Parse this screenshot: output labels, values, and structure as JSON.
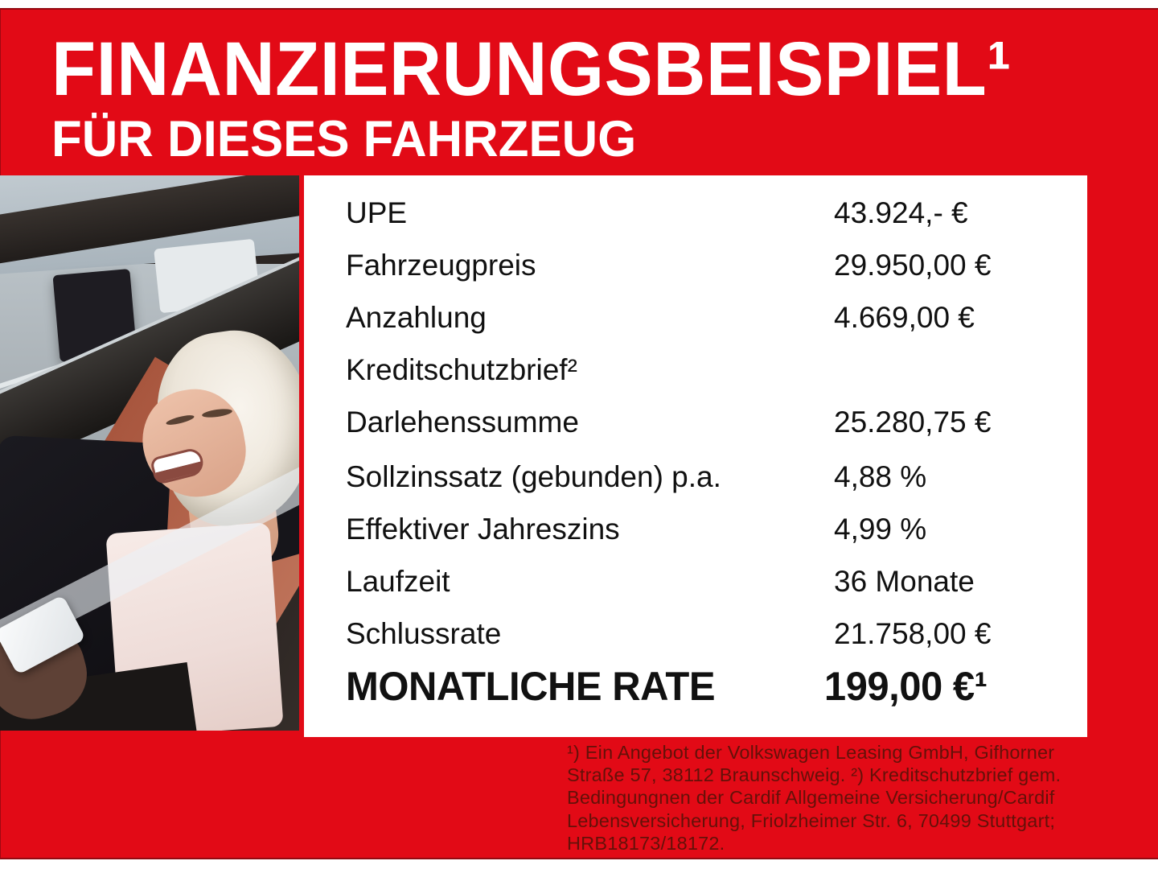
{
  "header": {
    "title": "FINANZIERUNGSBEISPIEL¹",
    "subtitle": "FÜR DIESES FAHRZEUG"
  },
  "table": {
    "rows": [
      {
        "label": "UPE",
        "value": "43.924,- €"
      },
      {
        "label": "Fahrzeugpreis",
        "value": "29.950,00 €"
      },
      {
        "label": "Anzahlung",
        "value": "4.669,00 €"
      },
      {
        "label": "Kreditschutzbrief²",
        "value": ""
      },
      {
        "label": "Darlehenssumme",
        "value": "25.280,75 €"
      },
      {
        "label": "Sollzinssatz (gebunden) p.a.",
        "value": "4,88 %"
      },
      {
        "label": "Effektiver Jahreszins",
        "value": "4,99 %"
      },
      {
        "label": "Laufzeit",
        "value": "36 Monate"
      },
      {
        "label": "Schlussrate",
        "value": "21.758,00 €"
      }
    ],
    "total_row": {
      "label": "MONATLICHE RATE",
      "value": "199,00 €¹"
    }
  },
  "footnote": {
    "lines": [
      "¹) Ein Angebot der Volkswagen Leasing GmbH, Gifhorner",
      "Straße 57, 38112 Braunschweig. ²) Kreditschutzbrief gem.",
      "Bedingungnen der Cardif Allgemeine Versicherung/Cardif",
      "Lebensversicherung, Friolzheimer Str. 6, 70499 Stuttgart;",
      "HRB18173/18172."
    ]
  },
  "colors": {
    "red": "#e20a16",
    "header_text": "#ffffff",
    "panel_bg": "#ffffff",
    "table_text": "#111111",
    "footnote_text": "#641109"
  }
}
